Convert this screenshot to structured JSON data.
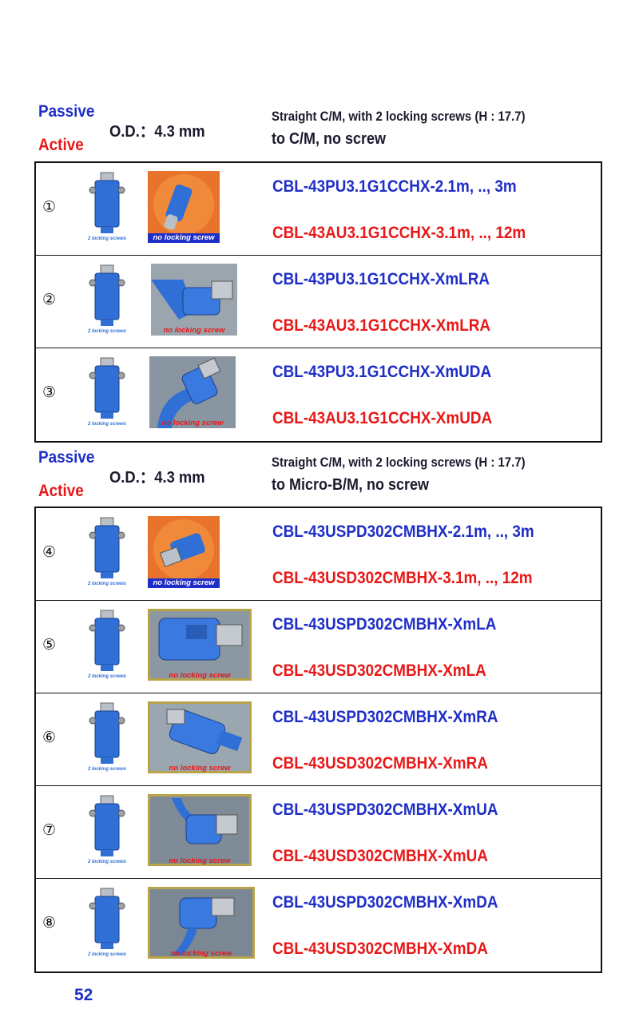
{
  "sections": [
    {
      "passive_label": "Passive",
      "active_label": "Active",
      "od": "O.D.：4.3 mm",
      "desc_line1": "Straight C/M, with 2 locking screws (H : 17.7)",
      "desc_line2": "to C/M, no screw",
      "rows": [
        {
          "num": "①",
          "caption_left": "2 locking screws",
          "caption_right": "no locking screw",
          "passive_pn": "CBL-43PU3.1G1CCHX-2.1m, .., 3m",
          "active_pn": "CBL-43AU3.1G1CCHX-3.1m, .., 12m"
        },
        {
          "num": "②",
          "caption_left": "2 locking screws",
          "caption_right": "no locking screw",
          "passive_pn": "CBL-43PU3.1G1CCHX-XmLRA",
          "active_pn": "CBL-43AU3.1G1CCHX-XmLRA"
        },
        {
          "num": "③",
          "caption_left": "2 locking screws",
          "caption_right": "no locking screw",
          "passive_pn": "CBL-43PU3.1G1CCHX-XmUDA",
          "active_pn": "CBL-43AU3.1G1CCHX-XmUDA"
        }
      ]
    },
    {
      "passive_label": "Passive",
      "active_label": "Active",
      "od": "O.D.：4.3 mm",
      "desc_line1": "Straight C/M, with 2 locking screws (H : 17.7)",
      "desc_line2": "to Micro-B/M, no screw",
      "rows": [
        {
          "num": "④",
          "caption_left": "2 locking screws",
          "caption_right": "no locking screw",
          "passive_pn": "CBL-43USPD302CMBHX-2.1m, .., 3m",
          "active_pn": "CBL-43USD302CMBHX-3.1m, .., 12m"
        },
        {
          "num": "⑤",
          "caption_left": "2 locking screws",
          "caption_right": "no locking screw",
          "passive_pn": "CBL-43USPD302CMBHX-XmLA",
          "active_pn": "CBL-43USD302CMBHX-XmLA"
        },
        {
          "num": "⑥",
          "caption_left": "2 locking screws",
          "caption_right": "no locking screw",
          "passive_pn": "CBL-43USPD302CMBHX-XmRA",
          "active_pn": "CBL-43USD302CMBHX-XmRA"
        },
        {
          "num": "⑦",
          "caption_left": "2 locking screws",
          "caption_right": "no locking screw",
          "passive_pn": "CBL-43USPD302CMBHX-XmUA",
          "active_pn": "CBL-43USD302CMBHX-XmUA"
        },
        {
          "num": "⑧",
          "caption_left": "2 locking screws",
          "caption_right": "no locking screw",
          "passive_pn": "CBL-43USPD302CMBHX-XmDA",
          "active_pn": "CBL-43USD302CMBHX-XmDA"
        }
      ]
    }
  ],
  "page_number": "52",
  "colors": {
    "passive": "#1f2ec8",
    "active": "#e81818",
    "cable": "#2f6fd6"
  }
}
